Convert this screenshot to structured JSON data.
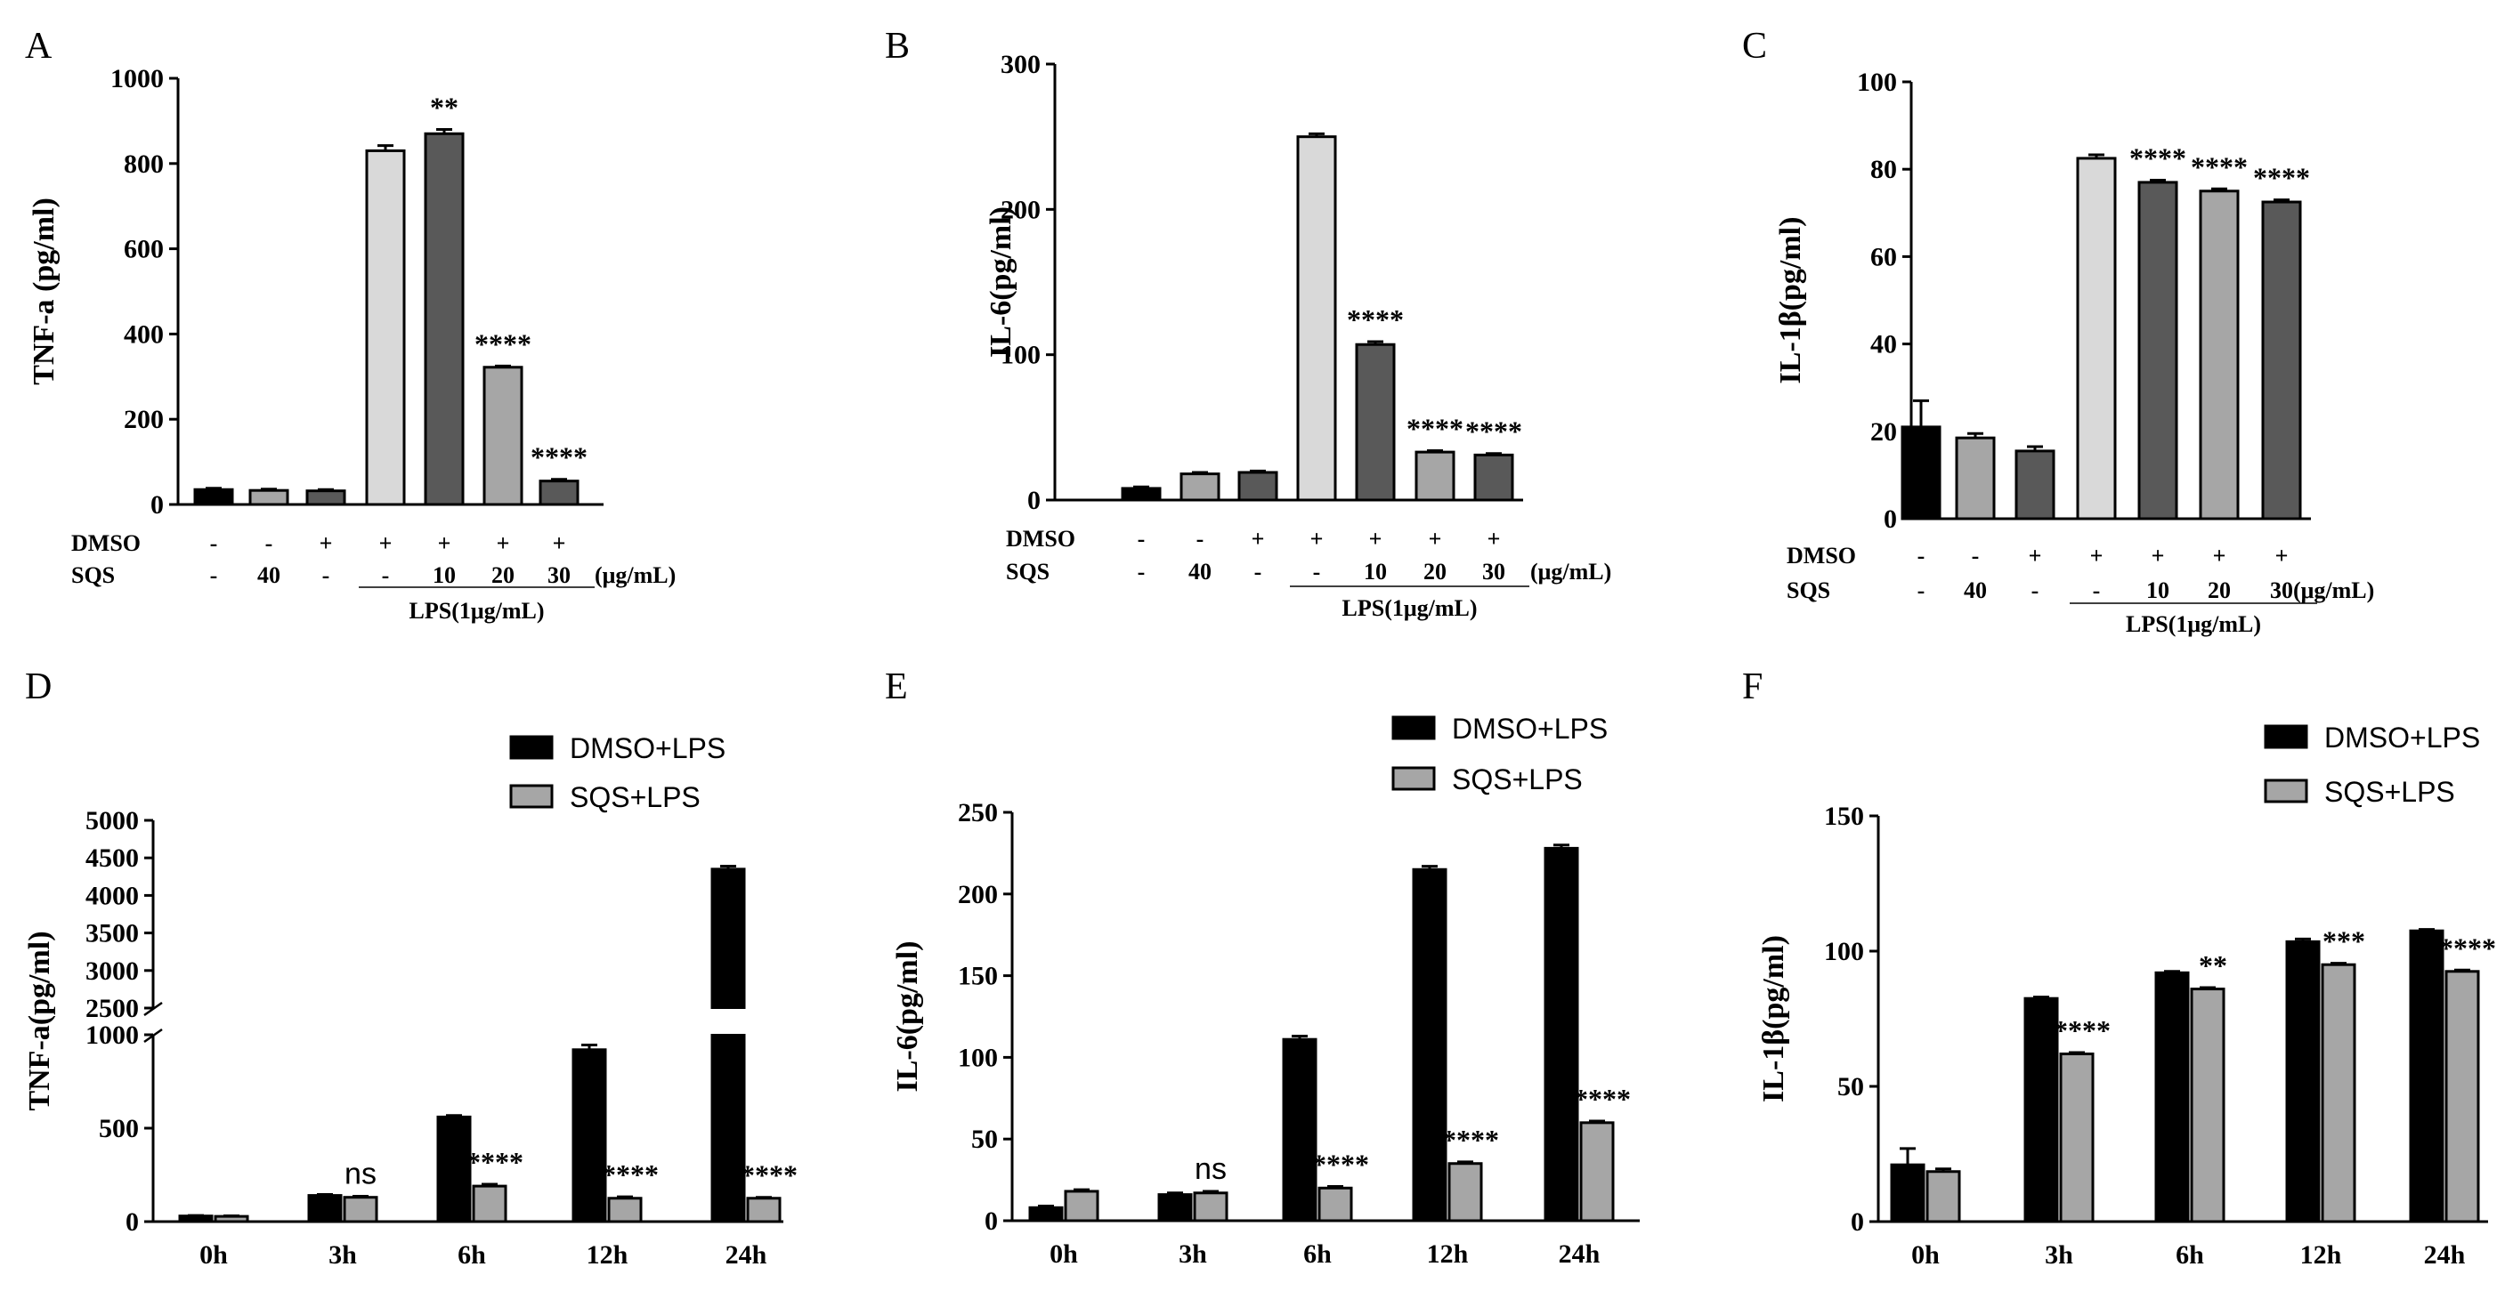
{
  "figure": {
    "colors": {
      "black": "#000000",
      "dark_gray": "#595959",
      "mid_gray": "#a6a6a6",
      "light_gray": "#d9d9d9"
    },
    "panels": [
      {
        "label": "A",
        "chart_data": {
          "type": "bar",
          "ylabel": "TNF-a (pg/ml)",
          "ylim": [
            0,
            1000
          ],
          "yticks": [
            "0",
            "200",
            "400",
            "600",
            "800",
            "1000"
          ],
          "bars": [
            {
              "value": 35,
              "err": 3,
              "fill": "black",
              "sig": ""
            },
            {
              "value": 33,
              "err": 3,
              "fill": "mid_gray",
              "sig": ""
            },
            {
              "value": 32,
              "err": 3,
              "fill": "dark_gray",
              "sig": ""
            },
            {
              "value": 830,
              "err": 12,
              "fill": "light_gray",
              "sig": ""
            },
            {
              "value": 870,
              "err": 10,
              "fill": "dark_gray",
              "sig": "**"
            },
            {
              "value": 322,
              "err": 3,
              "fill": "mid_gray",
              "sig": "****"
            },
            {
              "value": 55,
              "err": 4,
              "fill": "dark_gray",
              "sig": "****"
            }
          ],
          "rows": [
            {
              "label": "DMSO",
              "values": [
                "-",
                "-",
                "+",
                "+",
                "+",
                "+",
                "+"
              ]
            },
            {
              "label": "SQS",
              "values": [
                "-",
                "40",
                "-",
                "-",
                "10",
                "20",
                "30"
              ],
              "unit": "(μg/mL)"
            }
          ],
          "group_label": "LPS(1μg/mL)"
        }
      },
      {
        "label": "B",
        "chart_data": {
          "type": "bar",
          "ylabel": "IL-6(pg/ml)",
          "ylim": [
            0,
            300
          ],
          "yticks": [
            "0",
            "100",
            "200",
            "300"
          ],
          "bars": [
            {
              "value": 8,
              "err": 1,
              "fill": "black",
              "sig": ""
            },
            {
              "value": 18,
              "err": 1,
              "fill": "mid_gray",
              "sig": ""
            },
            {
              "value": 19,
              "err": 1,
              "fill": "dark_gray",
              "sig": ""
            },
            {
              "value": 250,
              "err": 2,
              "fill": "light_gray",
              "sig": ""
            },
            {
              "value": 107,
              "err": 2,
              "fill": "dark_gray",
              "sig": "****"
            },
            {
              "value": 33,
              "err": 1,
              "fill": "mid_gray",
              "sig": "****"
            },
            {
              "value": 31,
              "err": 1,
              "fill": "dark_gray",
              "sig": "****"
            }
          ],
          "rows": [
            {
              "label": "DMSO",
              "values": [
                "-",
                "-",
                "+",
                "+",
                "+",
                "+",
                "+"
              ]
            },
            {
              "label": "SQS",
              "values": [
                "-",
                "40",
                "-",
                "-",
                "10",
                "20",
                "30"
              ],
              "unit": "(μg/mL)"
            }
          ],
          "group_label": "LPS(1μg/mL)"
        }
      },
      {
        "label": "C",
        "chart_data": {
          "type": "bar",
          "ylabel": "IL-1β(pg/ml)",
          "ylim": [
            0,
            100
          ],
          "yticks": [
            "0",
            "20",
            "40",
            "60",
            "80",
            "100"
          ],
          "bars": [
            {
              "value": 21,
              "err": 6,
              "fill": "black",
              "sig": ""
            },
            {
              "value": 18.5,
              "err": 1,
              "fill": "mid_gray",
              "sig": ""
            },
            {
              "value": 15.5,
              "err": 1,
              "fill": "dark_gray",
              "sig": ""
            },
            {
              "value": 82.5,
              "err": 0.8,
              "fill": "light_gray",
              "sig": ""
            },
            {
              "value": 77,
              "err": 0.5,
              "fill": "dark_gray",
              "sig": "****"
            },
            {
              "value": 75,
              "err": 0.5,
              "fill": "mid_gray",
              "sig": "****"
            },
            {
              "value": 72.5,
              "err": 0.5,
              "fill": "dark_gray",
              "sig": "****"
            }
          ],
          "rows": [
            {
              "label": "DMSO",
              "values": [
                "-",
                "-",
                "+",
                "+",
                "+",
                "+",
                "+"
              ]
            },
            {
              "label": "SQS",
              "values": [
                "-",
                "40",
                "-",
                "-",
                "10",
                "20",
                "30"
              ],
              "unit": "(μg/mL)"
            }
          ],
          "group_label": "LPS(1μg/mL)"
        }
      },
      {
        "label": "D",
        "chart_data": {
          "type": "bar",
          "ylabel": "TNF-a(pg/ml)",
          "broken_axis": {
            "lower": [
              0,
              1000
            ],
            "upper": [
              2500,
              5000
            ]
          },
          "lower_ticks": [
            "0",
            "500",
            "1000"
          ],
          "upper_ticks": [
            "2500",
            "3000",
            "3500",
            "4000",
            "4500",
            "5000"
          ],
          "categories": [
            "0h",
            "3h",
            "6h",
            "12h",
            "24h"
          ],
          "legend": [
            "DMSO+LPS",
            "SQS+LPS"
          ],
          "series": [
            {
              "name": "DMSO+LPS",
              "values": [
                30,
                140,
                560,
                920,
                4350
              ],
              "errors": [
                3,
                5,
                8,
                25,
                40
              ],
              "sig": [
                "",
                "",
                "",
                "",
                ""
              ]
            },
            {
              "name": "SQS+LPS",
              "values": [
                28,
                130,
                190,
                125,
                125
              ],
              "errors": [
                3,
                6,
                10,
                8,
                5
              ],
              "sig": [
                "",
                "ns",
                "****",
                "****",
                "****"
              ]
            }
          ]
        }
      },
      {
        "label": "E",
        "chart_data": {
          "type": "bar",
          "ylabel": "IL-6(pg/ml)",
          "ylim": [
            0,
            250
          ],
          "yticks": [
            "0",
            "50",
            "100",
            "150",
            "200",
            "250"
          ],
          "categories": [
            "0h",
            "3h",
            "6h",
            "12h",
            "24h"
          ],
          "legend": [
            "DMSO+LPS",
            "SQS+LPS"
          ],
          "series": [
            {
              "name": "DMSO+LPS",
              "values": [
                8,
                16,
                111,
                215,
                228
              ],
              "errors": [
                1,
                1,
                2,
                2,
                2
              ],
              "sig": [
                "",
                "",
                "",
                "",
                ""
              ]
            },
            {
              "name": "SQS+LPS",
              "values": [
                18,
                17,
                20,
                35,
                60
              ],
              "errors": [
                1,
                1,
                1,
                1,
                1
              ],
              "sig": [
                "",
                "ns",
                "****",
                "****",
                "****"
              ]
            }
          ]
        }
      },
      {
        "label": "F",
        "chart_data": {
          "type": "bar",
          "ylabel": "IL-1β(pg/ml)",
          "ylim": [
            0,
            150
          ],
          "yticks": [
            "0",
            "50",
            "100",
            "150"
          ],
          "categories": [
            "0h",
            "3h",
            "6h",
            "12h",
            "24h"
          ],
          "legend": [
            "DMSO+LPS",
            "SQS+LPS"
          ],
          "series": [
            {
              "name": "DMSO+LPS",
              "values": [
                21,
                82.5,
                92,
                103.5,
                107.5
              ],
              "errors": [
                6,
                0.5,
                0.5,
                1,
                0.5
              ],
              "sig": [
                "",
                "",
                "",
                "",
                ""
              ]
            },
            {
              "name": "SQS+LPS",
              "values": [
                18.5,
                62,
                86,
                95,
                92.5
              ],
              "errors": [
                1,
                0.5,
                0.5,
                0.5,
                0.5
              ],
              "sig": [
                "",
                "****",
                "**",
                "***",
                "****"
              ]
            }
          ]
        }
      }
    ]
  }
}
